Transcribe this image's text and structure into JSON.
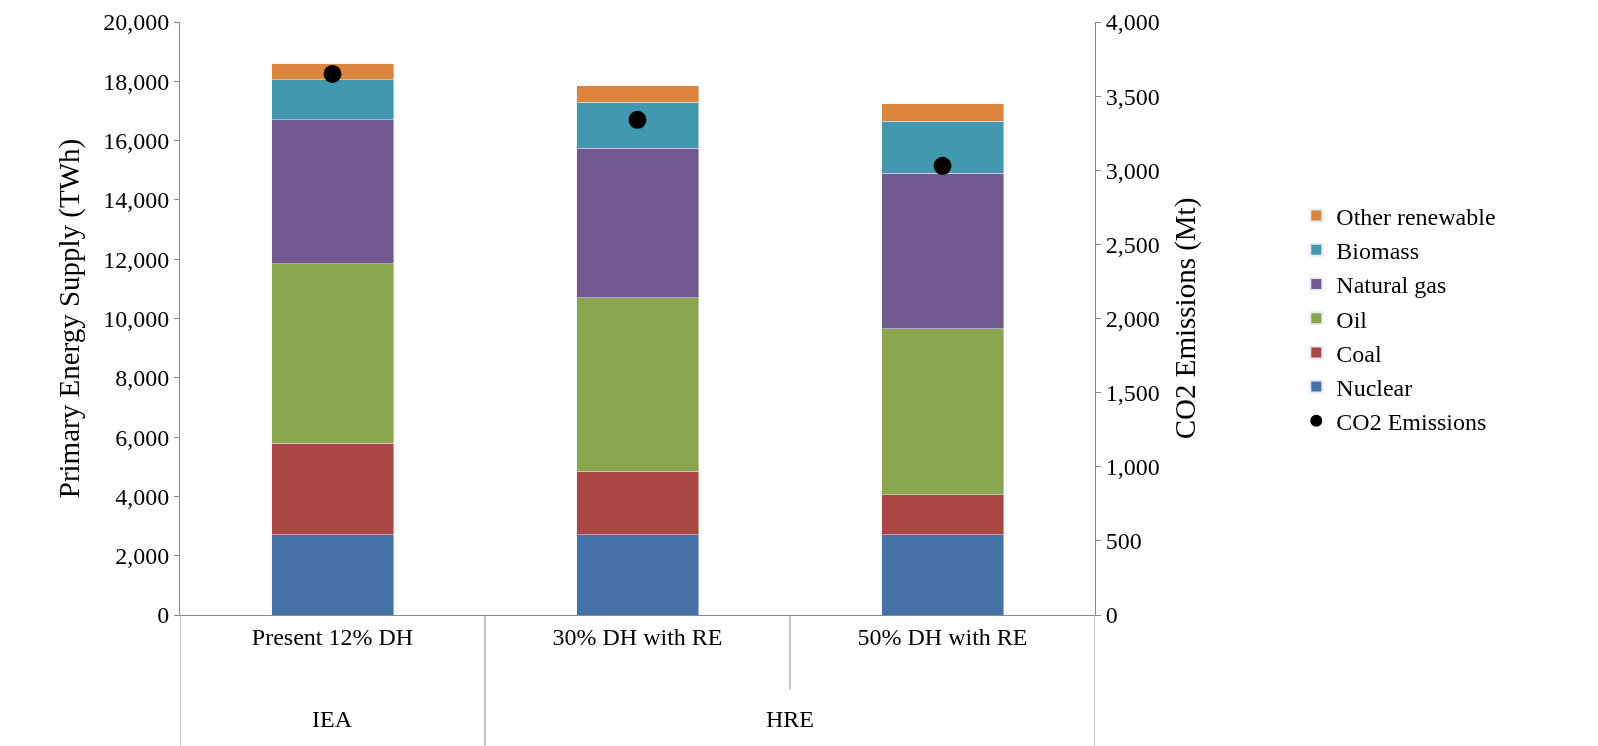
{
  "chart_data": {
    "type": "bar",
    "stacked": true,
    "categories": [
      "Present 12% DH",
      "30% DH with RE",
      "50% DH with RE"
    ],
    "ylabel": "Primary Energy Supply (TWh)",
    "y2label": "CO2 Emissions (Mt)",
    "ylim": [
      0,
      20000
    ],
    "yticks": [
      {
        "value": 0,
        "label": "0"
      },
      {
        "value": 2000,
        "label": "2,000"
      },
      {
        "value": 4000,
        "label": "4,000"
      },
      {
        "value": 6000,
        "label": "6,000"
      },
      {
        "value": 8000,
        "label": "8,000"
      },
      {
        "value": 10000,
        "label": "10,000"
      },
      {
        "value": 12000,
        "label": "12,000"
      },
      {
        "value": 14000,
        "label": "14,000"
      },
      {
        "value": 16000,
        "label": "16,000"
      },
      {
        "value": 18000,
        "label": "18,000"
      },
      {
        "value": 20000,
        "label": "20,000"
      }
    ],
    "y2lim": [
      0,
      4000
    ],
    "y2ticks": [
      {
        "value": 0,
        "label": "0"
      },
      {
        "value": 500,
        "label": "500"
      },
      {
        "value": 1000,
        "label": "1,000"
      },
      {
        "value": 1500,
        "label": "1,500"
      },
      {
        "value": 2000,
        "label": "2,000"
      },
      {
        "value": 2500,
        "label": "2,500"
      },
      {
        "value": 3000,
        "label": "3,000"
      },
      {
        "value": 3500,
        "label": "3,500"
      },
      {
        "value": 4000,
        "label": "4,000"
      }
    ],
    "series": [
      {
        "name": "Nuclear",
        "color": "#4572a7",
        "values": [
          2700,
          2700,
          2700
        ]
      },
      {
        "name": "Coal",
        "color": "#aa4643",
        "values": [
          3100,
          2150,
          1350
        ]
      },
      {
        "name": "Oil",
        "color": "#89a54e",
        "values": [
          6050,
          5850,
          5600
        ]
      },
      {
        "name": "Natural gas",
        "color": "#71588f",
        "values": [
          4850,
          5050,
          5250
        ]
      },
      {
        "name": "Biomass",
        "color": "#4198af",
        "values": [
          1350,
          1550,
          1750
        ]
      },
      {
        "name": "Other renewable",
        "color": "#db843d",
        "values": [
          550,
          550,
          600
        ]
      },
      {
        "name": "CO2 Emissions",
        "type": "scatter",
        "axis": "y2",
        "marker": "circle",
        "color": "#000000",
        "values": [
          3650,
          3340,
          3030
        ]
      }
    ],
    "annotations": [
      "IEA",
      "HRE"
    ],
    "legend": "right"
  }
}
